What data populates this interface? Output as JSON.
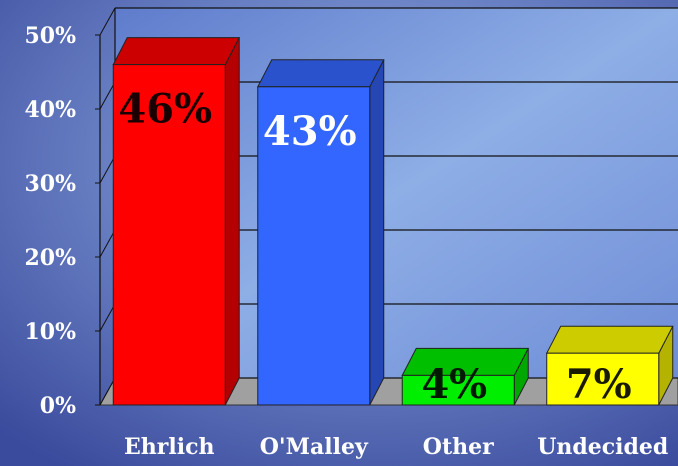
{
  "chart_data": {
    "type": "bar3d",
    "categories": [
      "Ehrlich",
      "O'Malley",
      "Other",
      "Undecided"
    ],
    "values": [
      46,
      43,
      4,
      7
    ],
    "value_labels": [
      "46%",
      "43%",
      "4%",
      "7%"
    ],
    "colors": [
      "#ff0000",
      "#3366ff",
      "#00ee00",
      "#ffff00"
    ],
    "label_colors": [
      "#1a0000",
      "#ffffff",
      "#001a00",
      "#1a1a00"
    ],
    "ylim": [
      0,
      50
    ],
    "yticks": [
      {
        "value": 0,
        "label": "0%"
      },
      {
        "value": 10,
        "label": "10%"
      },
      {
        "value": 20,
        "label": "20%"
      },
      {
        "value": 30,
        "label": "30%"
      },
      {
        "value": 40,
        "label": "40%"
      },
      {
        "value": 50,
        "label": "50%"
      }
    ],
    "grid": true
  }
}
